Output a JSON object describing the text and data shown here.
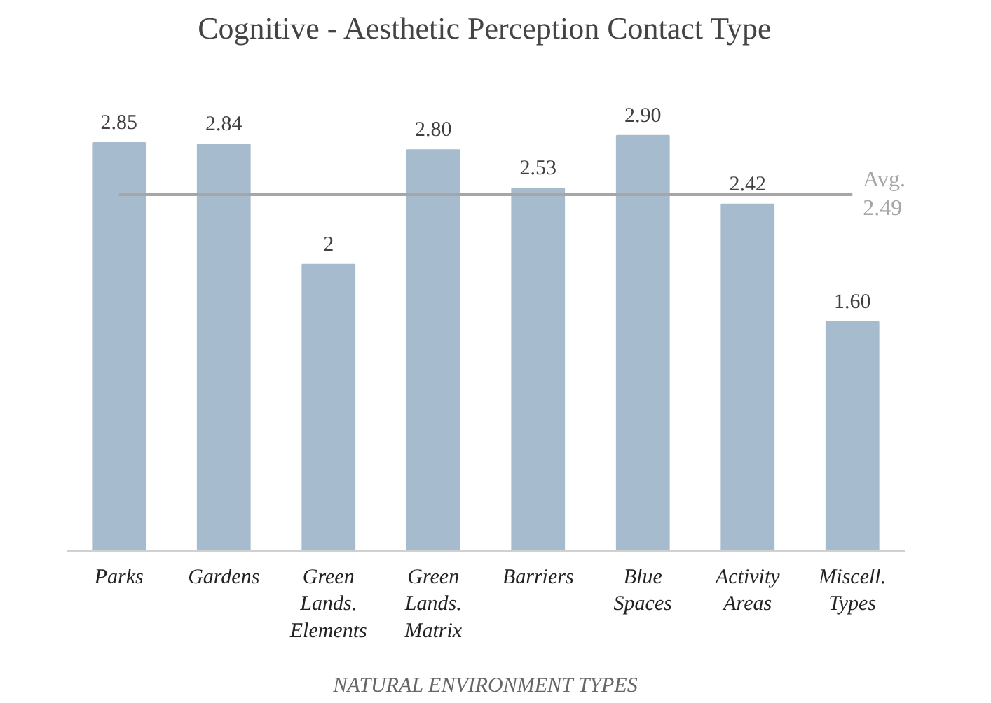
{
  "chart_data": {
    "type": "bar",
    "title": "Cognitive - Aesthetic Perception Contact Type",
    "xlabel": "NATURAL ENVIRONMENT TYPES",
    "categories": [
      "Parks",
      "Gardens",
      "Green Lands. Elements",
      "Green Lands. Matrix",
      "Barriers",
      "Blue Spaces",
      "Activity Areas",
      "Miscell. Types"
    ],
    "values": [
      2.85,
      2.84,
      2,
      2.8,
      2.53,
      2.9,
      2.42,
      1.6
    ],
    "value_labels": [
      "2.85",
      "2.84",
      "2",
      "2.80",
      "2.53",
      "2.90",
      "2.42",
      "1.60"
    ],
    "color": "#a6bbcd",
    "ref_lines": [
      {
        "axis": "y",
        "value": 2.49,
        "label": "Avg.\n2.49",
        "color": "#a6a6a6"
      }
    ],
    "grid": false
  }
}
